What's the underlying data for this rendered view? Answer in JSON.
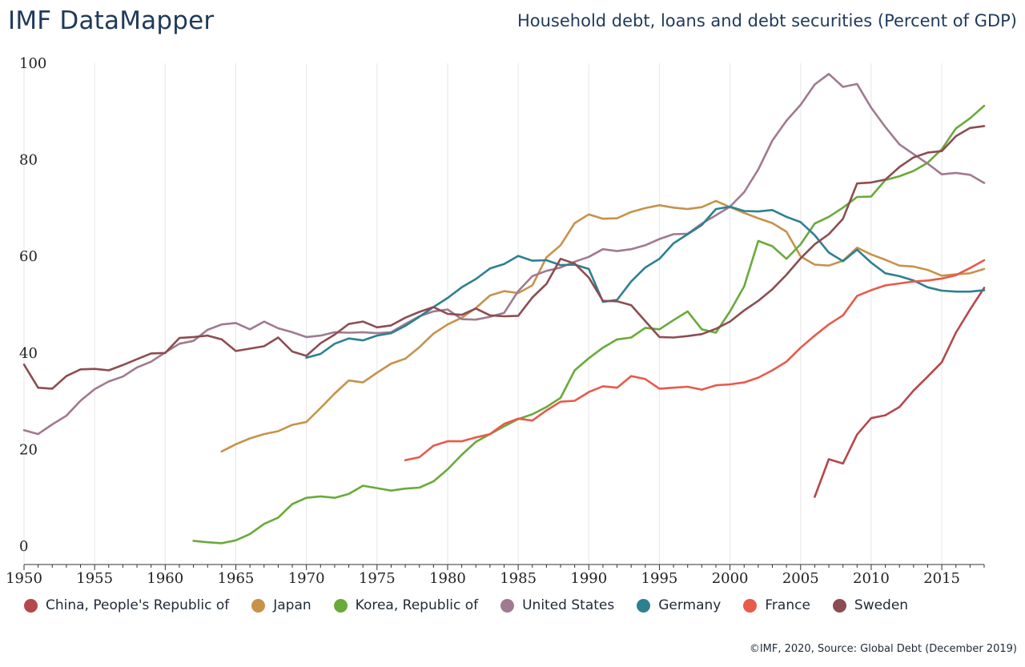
{
  "header": {
    "brand": "IMF DataMapper",
    "title": "Household debt, loans and debt securities (Percent of GDP)"
  },
  "footer": {
    "source": "©IMF, 2020, Source: Global Debt (December 2019)"
  },
  "chart_data": {
    "type": "line",
    "title": "Household debt, loans and debt securities (Percent of GDP)",
    "xlabel": "",
    "ylabel": "",
    "xlim": [
      1950,
      2018
    ],
    "ylim": [
      0,
      100
    ],
    "x_ticks": [
      1950,
      1955,
      1960,
      1965,
      1970,
      1975,
      1980,
      1985,
      1990,
      1995,
      2000,
      2005,
      2010,
      2015
    ],
    "y_ticks": [
      0,
      20,
      40,
      60,
      80,
      100
    ],
    "grid": "vertical",
    "legend_position": "bottom",
    "series": [
      {
        "name": "China, People's Republic of",
        "color": "#b5474b",
        "x": [
          2006,
          2007,
          2008,
          2009,
          2010,
          2011,
          2012,
          2013,
          2014,
          2015,
          2016,
          2017,
          2018
        ],
        "values": [
          10.2,
          18,
          17.1,
          23.1,
          26.5,
          27.1,
          28.8,
          32.2,
          35.1,
          38.1,
          44.2,
          49,
          53.5
        ]
      },
      {
        "name": "Japan",
        "color": "#c8924a",
        "x": [
          1964,
          1965,
          1966,
          1967,
          1968,
          1969,
          1970,
          1971,
          1972,
          1973,
          1974,
          1975,
          1976,
          1977,
          1978,
          1979,
          1980,
          1981,
          1982,
          1983,
          1984,
          1985,
          1986,
          1987,
          1988,
          1989,
          1990,
          1991,
          1992,
          1993,
          1994,
          1995,
          1996,
          1997,
          1998,
          1999,
          2000,
          2001,
          2002,
          2003,
          2004,
          2005,
          2006,
          2007,
          2008,
          2009,
          2010,
          2011,
          2012,
          2013,
          2014,
          2015,
          2016,
          2017,
          2018
        ],
        "values": [
          19.6,
          21.1,
          22.3,
          23.2,
          23.8,
          25.1,
          25.7,
          28.6,
          31.6,
          34.3,
          33.9,
          35.9,
          37.8,
          38.8,
          41.2,
          44,
          45.9,
          47.3,
          49.3,
          51.9,
          52.8,
          52.4,
          54,
          59.8,
          62.3,
          66.9,
          68.7,
          67.8,
          67.9,
          69.2,
          70,
          70.6,
          70.1,
          69.8,
          70.2,
          71.5,
          70.2,
          69,
          67.9,
          66.9,
          65.1,
          60,
          58.3,
          58.1,
          59.1,
          61.8,
          60.4,
          59.3,
          58.1,
          57.9,
          57.2,
          56,
          56.3,
          56.5,
          57.4
        ]
      },
      {
        "name": "Korea, Republic of",
        "color": "#6aaa3a",
        "x": [
          1962,
          1963,
          1964,
          1965,
          1966,
          1967,
          1968,
          1969,
          1970,
          1971,
          1972,
          1973,
          1974,
          1975,
          1976,
          1977,
          1978,
          1979,
          1980,
          1981,
          1982,
          1983,
          1984,
          1985,
          1986,
          1987,
          1988,
          1989,
          1990,
          1991,
          1992,
          1993,
          1994,
          1995,
          1996,
          1997,
          1998,
          1999,
          2000,
          2001,
          2002,
          2003,
          2004,
          2005,
          2006,
          2007,
          2008,
          2009,
          2010,
          2011,
          2012,
          2013,
          2014,
          2015,
          2016,
          2017,
          2018
        ],
        "values": [
          1.1,
          0.8,
          0.6,
          1.2,
          2.5,
          4.6,
          5.9,
          8.7,
          10,
          10.3,
          10,
          10.8,
          12.5,
          12,
          11.5,
          11.9,
          12.1,
          13.4,
          15.9,
          18.9,
          21.6,
          23.2,
          24.8,
          26.3,
          27.3,
          28.8,
          30.7,
          36.4,
          38.9,
          41.1,
          42.8,
          43.2,
          45.2,
          44.9,
          46.8,
          48.6,
          44.9,
          44.2,
          48.6,
          53.8,
          63.2,
          62.1,
          59.5,
          62.5,
          66.8,
          68.2,
          70.1,
          72.3,
          72.4,
          75.8,
          76.6,
          77.7,
          79.4,
          82.2,
          86.5,
          88.6,
          91.2
        ]
      },
      {
        "name": "United States",
        "color": "#a07a90",
        "x": [
          1950,
          1951,
          1952,
          1953,
          1954,
          1955,
          1956,
          1957,
          1958,
          1959,
          1960,
          1961,
          1962,
          1963,
          1964,
          1965,
          1966,
          1967,
          1968,
          1969,
          1970,
          1971,
          1972,
          1973,
          1974,
          1975,
          1976,
          1977,
          1978,
          1979,
          1980,
          1981,
          1982,
          1983,
          1984,
          1985,
          1986,
          1987,
          1988,
          1989,
          1990,
          1991,
          1992,
          1993,
          1994,
          1995,
          1996,
          1997,
          1998,
          1999,
          2000,
          2001,
          2002,
          2003,
          2004,
          2005,
          2006,
          2007,
          2008,
          2009,
          2010,
          2011,
          2012,
          2013,
          2014,
          2015,
          2016,
          2017,
          2018
        ],
        "values": [
          24,
          23.2,
          25.2,
          27,
          30.1,
          32.5,
          34.1,
          35.1,
          37,
          38.2,
          40.1,
          41.9,
          42.5,
          44.8,
          45.9,
          46.2,
          44.9,
          46.5,
          45.1,
          44.3,
          43.3,
          43.6,
          44.3,
          44.2,
          44.3,
          44.1,
          44.3,
          46,
          47.6,
          48.6,
          49,
          47,
          46.9,
          47.5,
          48.3,
          52.8,
          55.9,
          57,
          57.7,
          58.9,
          59.9,
          61.5,
          61.1,
          61.5,
          62.3,
          63.6,
          64.6,
          64.7,
          66.8,
          68.5,
          70.3,
          73.3,
          78,
          84,
          88.1,
          91.4,
          95.6,
          97.8,
          95.1,
          95.7,
          90.8,
          86.8,
          83.2,
          81.2,
          79.2,
          77,
          77.3,
          76.9,
          75.2
        ]
      },
      {
        "name": "Germany",
        "color": "#2e8091",
        "x": [
          1970,
          1971,
          1972,
          1973,
          1974,
          1975,
          1976,
          1977,
          1978,
          1979,
          1980,
          1981,
          1982,
          1983,
          1984,
          1985,
          1986,
          1987,
          1988,
          1989,
          1990,
          1991,
          1992,
          1993,
          1994,
          1995,
          1996,
          1997,
          1998,
          1999,
          2000,
          2001,
          2002,
          2003,
          2004,
          2005,
          2006,
          2007,
          2008,
          2009,
          2010,
          2011,
          2012,
          2013,
          2014,
          2015,
          2016,
          2017,
          2018
        ],
        "values": [
          39,
          39.8,
          41.9,
          43,
          42.6,
          43.6,
          44.1,
          45.6,
          47.5,
          49.5,
          51.4,
          53.6,
          55.3,
          57.5,
          58.4,
          60.1,
          59.1,
          59.2,
          58.2,
          58.3,
          57.4,
          50.6,
          51,
          54.8,
          57.7,
          59.5,
          62.7,
          64.6,
          66.5,
          69.8,
          70.3,
          69.4,
          69.3,
          69.6,
          68.2,
          67.1,
          64.4,
          60.8,
          59,
          61.4,
          58.7,
          56.5,
          55.9,
          55,
          53.6,
          52.9,
          52.7,
          52.7,
          53
        ]
      },
      {
        "name": "France",
        "color": "#e85a4a",
        "x": [
          1977,
          1978,
          1979,
          1980,
          1981,
          1982,
          1983,
          1984,
          1985,
          1986,
          1987,
          1988,
          1989,
          1990,
          1991,
          1992,
          1993,
          1994,
          1995,
          1996,
          1997,
          1998,
          1999,
          2000,
          2001,
          2002,
          2003,
          2004,
          2005,
          2006,
          2007,
          2008,
          2009,
          2010,
          2011,
          2012,
          2013,
          2014,
          2015,
          2016,
          2017,
          2018
        ],
        "values": [
          17.8,
          18.4,
          20.8,
          21.7,
          21.7,
          22.5,
          23.2,
          25.3,
          26.4,
          26,
          28.1,
          29.9,
          30.1,
          31.9,
          33.1,
          32.8,
          35.2,
          34.6,
          32.6,
          32.8,
          33,
          32.4,
          33.3,
          33.5,
          33.9,
          34.9,
          36.4,
          38.2,
          41.1,
          43.6,
          45.9,
          47.8,
          51.8,
          53,
          54,
          54.4,
          54.8,
          55,
          55.4,
          56.1,
          57.6,
          59.2
        ]
      },
      {
        "name": "Sweden",
        "color": "#8c4d52",
        "x": [
          1950,
          1951,
          1952,
          1953,
          1954,
          1955,
          1956,
          1957,
          1958,
          1959,
          1960,
          1961,
          1962,
          1963,
          1964,
          1965,
          1966,
          1967,
          1968,
          1969,
          1970,
          1971,
          1972,
          1973,
          1974,
          1975,
          1976,
          1977,
          1978,
          1979,
          1980,
          1981,
          1982,
          1983,
          1984,
          1985,
          1986,
          1987,
          1988,
          1989,
          1990,
          1991,
          1992,
          1993,
          1994,
          1995,
          1996,
          1997,
          1998,
          1999,
          2000,
          2001,
          2002,
          2003,
          2004,
          2005,
          2006,
          2007,
          2008,
          2009,
          2010,
          2011,
          2012,
          2013,
          2014,
          2015,
          2016,
          2017,
          2018
        ],
        "values": [
          37.6,
          32.8,
          32.6,
          35.2,
          36.6,
          36.7,
          36.4,
          37.5,
          38.7,
          39.9,
          40,
          43.1,
          43.3,
          43.6,
          42.8,
          40.4,
          40.9,
          41.4,
          43.2,
          40.3,
          39.4,
          42,
          43.8,
          46,
          46.5,
          45.3,
          45.7,
          47.3,
          48.5,
          49.5,
          48.1,
          47.9,
          49.2,
          47.8,
          47.6,
          47.7,
          51.5,
          54.3,
          59.5,
          58.5,
          55.6,
          50.8,
          50.7,
          49.9,
          46.6,
          43.3,
          43.2,
          43.5,
          43.9,
          45,
          46.5,
          48.8,
          50.8,
          53.2,
          56.2,
          59.6,
          62.5,
          64.6,
          67.8,
          75.1,
          75.3,
          75.9,
          78.5,
          80.5,
          81.5,
          81.8,
          84.9,
          86.6,
          87
        ]
      }
    ]
  }
}
